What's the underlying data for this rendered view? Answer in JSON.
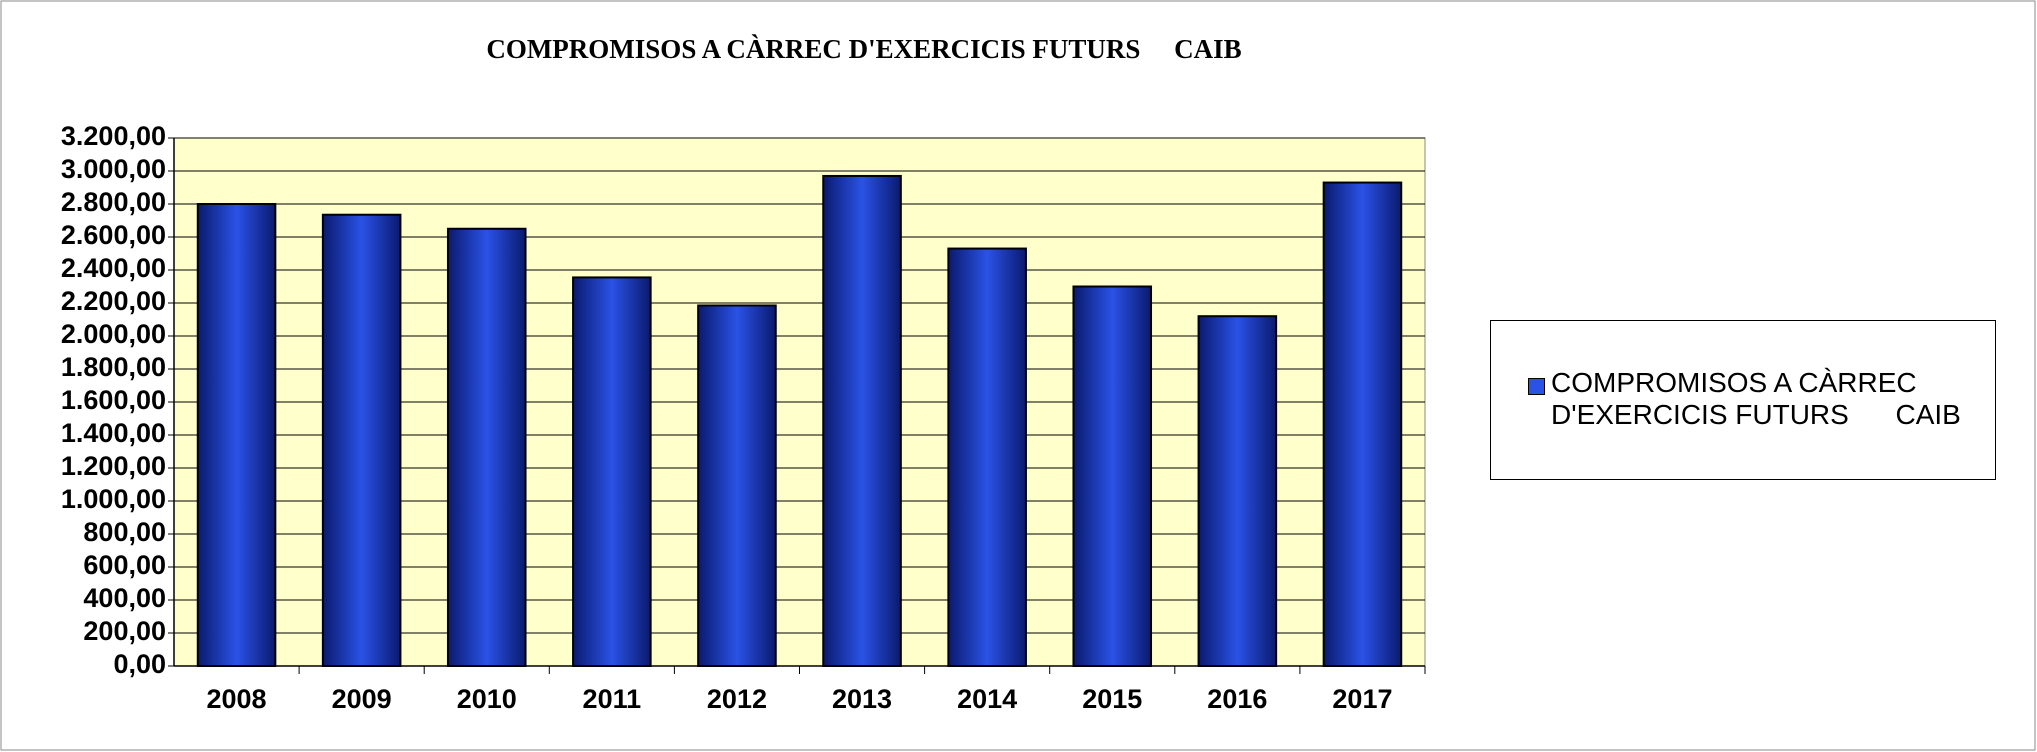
{
  "chart_data": {
    "type": "bar",
    "title": "COMPROMISOS A CÀRREC D'EXERCICIS FUTURS     CAIB",
    "categories": [
      "2008",
      "2009",
      "2010",
      "2011",
      "2012",
      "2013",
      "2014",
      "2015",
      "2016",
      "2017"
    ],
    "series": [
      {
        "name": "COMPROMISOS A CÀRREC D'EXERCICIS FUTURS      CAIB",
        "color": "#2a52e6",
        "values": [
          2800,
          2735,
          2650,
          2355,
          2185,
          2970,
          2530,
          2300,
          2120,
          2930
        ]
      }
    ],
    "ylim": [
      0,
      3200
    ],
    "yticks": [
      {
        "value": 0,
        "label": "0,00"
      },
      {
        "value": 200,
        "label": "200,00"
      },
      {
        "value": 400,
        "label": "400,00"
      },
      {
        "value": 600,
        "label": "600,00"
      },
      {
        "value": 800,
        "label": "800,00"
      },
      {
        "value": 1000,
        "label": "1.000,00"
      },
      {
        "value": 1200,
        "label": "1.200,00"
      },
      {
        "value": 1400,
        "label": "1.400,00"
      },
      {
        "value": 1600,
        "label": "1.600,00"
      },
      {
        "value": 1800,
        "label": "1.800,00"
      },
      {
        "value": 2000,
        "label": "2.000,00"
      },
      {
        "value": 2200,
        "label": "2.200,00"
      },
      {
        "value": 2400,
        "label": "2.400,00"
      },
      {
        "value": 2600,
        "label": "2.600,00"
      },
      {
        "value": 2800,
        "label": "2.800,00"
      },
      {
        "value": 3000,
        "label": "3.000,00"
      },
      {
        "value": 3200,
        "label": "3.200,00"
      }
    ],
    "grid": true,
    "legend": "right",
    "plot_background": "#ffffcc"
  }
}
